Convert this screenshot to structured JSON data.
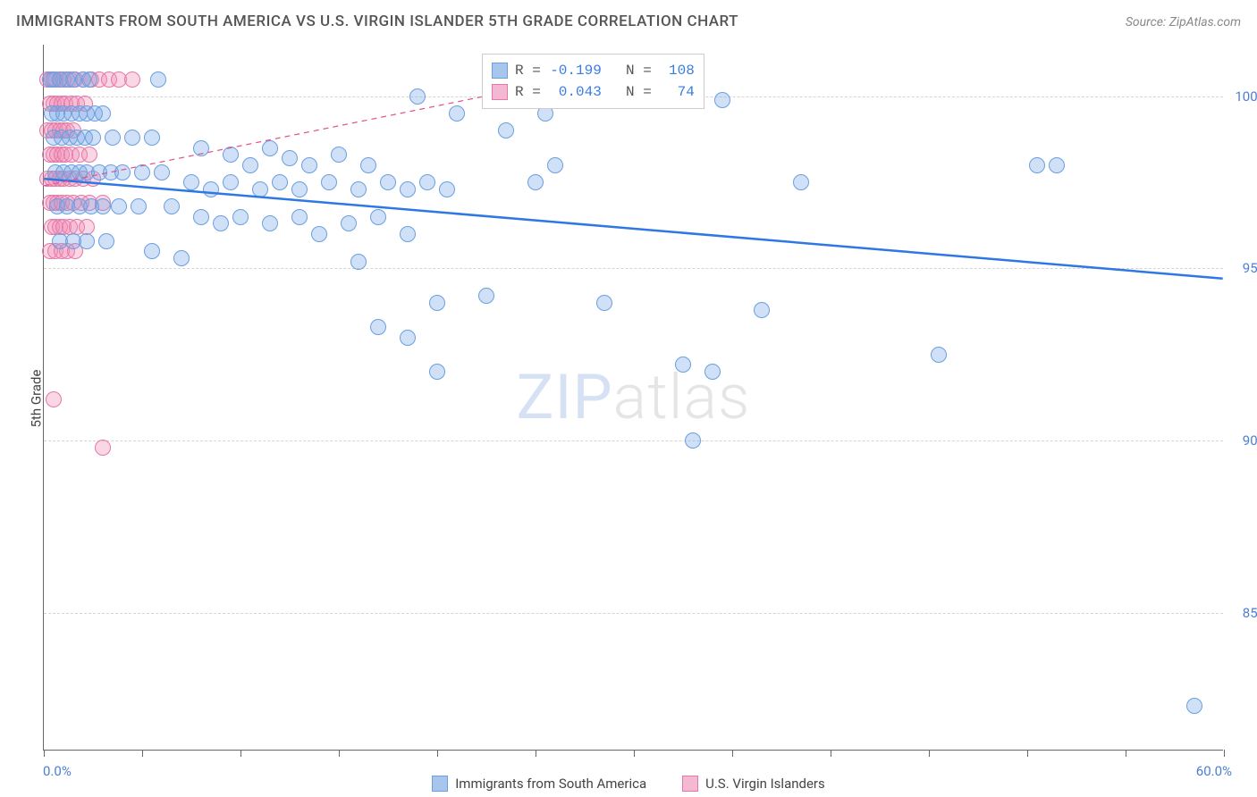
{
  "title": "IMMIGRANTS FROM SOUTH AMERICA VS U.S. VIRGIN ISLANDER 5TH GRADE CORRELATION CHART",
  "source": "Source: ZipAtlas.com",
  "ylabel": "5th Grade",
  "watermark_zip": "ZIP",
  "watermark_atlas": "atlas",
  "chart": {
    "type": "scatter",
    "xlim": [
      0,
      60
    ],
    "ylim": [
      81,
      101.5
    ],
    "xtick_min_label": "0.0%",
    "xtick_max_label": "60.0%",
    "xtick_positions": [
      0,
      5,
      10,
      15,
      20,
      25,
      30,
      35,
      40,
      45,
      50,
      55,
      60
    ],
    "ytick_positions": [
      85,
      90,
      95,
      100
    ],
    "ytick_labels": [
      "85.0%",
      "90.0%",
      "95.0%",
      "100.0%"
    ],
    "background_color": "#ffffff",
    "grid_color": "#d5d5d5",
    "axis_color": "#666666",
    "tick_label_color": "#4a7fd6",
    "marker_radius": 9,
    "series": [
      {
        "name": "Immigrants from South America",
        "color_fill": "rgba(120,165,230,0.35)",
        "color_stroke": "#6a9fe0",
        "swatch_fill": "#a8c5ec",
        "swatch_border": "#6a9fe0",
        "R": "-0.199",
        "N": "108",
        "trend": {
          "x1": 0,
          "y1": 97.6,
          "x2": 60,
          "y2": 94.7,
          "color": "#2e78e4",
          "width": 2.5,
          "dash": "none"
        },
        "points": [
          [
            0.3,
            100.5
          ],
          [
            0.5,
            100.5
          ],
          [
            0.8,
            100.5
          ],
          [
            1.2,
            100.5
          ],
          [
            1.5,
            100.5
          ],
          [
            2.0,
            100.5
          ],
          [
            2.3,
            100.5
          ],
          [
            5.8,
            100.5
          ],
          [
            0.4,
            99.5
          ],
          [
            0.7,
            99.5
          ],
          [
            1.0,
            99.5
          ],
          [
            1.4,
            99.5
          ],
          [
            1.8,
            99.5
          ],
          [
            2.2,
            99.5
          ],
          [
            2.6,
            99.5
          ],
          [
            3.0,
            99.5
          ],
          [
            19.0,
            100.0
          ],
          [
            21.0,
            99.5
          ],
          [
            23.5,
            99.0
          ],
          [
            25.5,
            99.5
          ],
          [
            27.0,
            100.5
          ],
          [
            34.5,
            99.9
          ],
          [
            0.5,
            98.8
          ],
          [
            0.9,
            98.8
          ],
          [
            1.3,
            98.8
          ],
          [
            1.7,
            98.8
          ],
          [
            2.1,
            98.8
          ],
          [
            2.5,
            98.8
          ],
          [
            3.5,
            98.8
          ],
          [
            4.5,
            98.8
          ],
          [
            5.5,
            98.8
          ],
          [
            8.0,
            98.5
          ],
          [
            9.5,
            98.3
          ],
          [
            10.5,
            98.0
          ],
          [
            11.5,
            98.5
          ],
          [
            12.5,
            98.2
          ],
          [
            13.5,
            98.0
          ],
          [
            15.0,
            98.3
          ],
          [
            16.5,
            98.0
          ],
          [
            50.5,
            98.0
          ],
          [
            51.5,
            98.0
          ],
          [
            0.6,
            97.8
          ],
          [
            1.0,
            97.8
          ],
          [
            1.4,
            97.8
          ],
          [
            1.8,
            97.8
          ],
          [
            2.2,
            97.8
          ],
          [
            2.8,
            97.8
          ],
          [
            3.4,
            97.8
          ],
          [
            4.0,
            97.8
          ],
          [
            5.0,
            97.8
          ],
          [
            6.0,
            97.8
          ],
          [
            7.5,
            97.5
          ],
          [
            8.5,
            97.3
          ],
          [
            9.5,
            97.5
          ],
          [
            11.0,
            97.3
          ],
          [
            12.0,
            97.5
          ],
          [
            13.0,
            97.3
          ],
          [
            14.5,
            97.5
          ],
          [
            16.0,
            97.3
          ],
          [
            17.5,
            97.5
          ],
          [
            18.5,
            97.3
          ],
          [
            19.5,
            97.5
          ],
          [
            20.5,
            97.3
          ],
          [
            25.0,
            97.5
          ],
          [
            26.0,
            98.0
          ],
          [
            38.5,
            97.5
          ],
          [
            0.7,
            96.8
          ],
          [
            1.2,
            96.8
          ],
          [
            1.8,
            96.8
          ],
          [
            2.4,
            96.8
          ],
          [
            3.0,
            96.8
          ],
          [
            3.8,
            96.8
          ],
          [
            4.8,
            96.8
          ],
          [
            6.5,
            96.8
          ],
          [
            8.0,
            96.5
          ],
          [
            9.0,
            96.3
          ],
          [
            10.0,
            96.5
          ],
          [
            11.5,
            96.3
          ],
          [
            13.0,
            96.5
          ],
          [
            14.0,
            96.0
          ],
          [
            15.5,
            96.3
          ],
          [
            17.0,
            96.5
          ],
          [
            18.5,
            96.0
          ],
          [
            0.8,
            95.8
          ],
          [
            1.5,
            95.8
          ],
          [
            2.2,
            95.8
          ],
          [
            3.2,
            95.8
          ],
          [
            5.5,
            95.5
          ],
          [
            7.0,
            95.3
          ],
          [
            16.0,
            95.2
          ],
          [
            20.0,
            94.0
          ],
          [
            22.5,
            94.2
          ],
          [
            28.5,
            94.0
          ],
          [
            17.0,
            93.3
          ],
          [
            18.5,
            93.0
          ],
          [
            20.0,
            92.0
          ],
          [
            32.5,
            92.2
          ],
          [
            34.0,
            92.0
          ],
          [
            36.5,
            93.8
          ],
          [
            45.5,
            92.5
          ],
          [
            33.0,
            90.0
          ],
          [
            58.5,
            82.3
          ]
        ]
      },
      {
        "name": "U.S. Virgin Islanders",
        "color_fill": "rgba(240,140,180,0.35)",
        "color_stroke": "#e478a8",
        "swatch_fill": "#f5b8d2",
        "swatch_border": "#e478a8",
        "R": "0.043",
        "N": "74",
        "trend": {
          "x1": 0,
          "y1": 97.4,
          "x2": 25,
          "y2": 100.3,
          "color": "#e05090",
          "width": 1.2,
          "dash": "6,5"
        },
        "points": [
          [
            0.2,
            100.5
          ],
          [
            0.4,
            100.5
          ],
          [
            0.6,
            100.5
          ],
          [
            0.8,
            100.5
          ],
          [
            1.0,
            100.5
          ],
          [
            1.3,
            100.5
          ],
          [
            1.6,
            100.5
          ],
          [
            2.0,
            100.5
          ],
          [
            2.4,
            100.5
          ],
          [
            2.8,
            100.5
          ],
          [
            3.3,
            100.5
          ],
          [
            3.8,
            100.5
          ],
          [
            4.5,
            100.5
          ],
          [
            0.3,
            99.8
          ],
          [
            0.5,
            99.8
          ],
          [
            0.7,
            99.8
          ],
          [
            0.9,
            99.8
          ],
          [
            1.1,
            99.8
          ],
          [
            1.4,
            99.8
          ],
          [
            1.7,
            99.8
          ],
          [
            2.1,
            99.8
          ],
          [
            0.2,
            99.0
          ],
          [
            0.4,
            99.0
          ],
          [
            0.6,
            99.0
          ],
          [
            0.8,
            99.0
          ],
          [
            1.0,
            99.0
          ],
          [
            1.2,
            99.0
          ],
          [
            1.5,
            99.0
          ],
          [
            0.3,
            98.3
          ],
          [
            0.5,
            98.3
          ],
          [
            0.7,
            98.3
          ],
          [
            0.9,
            98.3
          ],
          [
            1.1,
            98.3
          ],
          [
            1.4,
            98.3
          ],
          [
            1.8,
            98.3
          ],
          [
            2.3,
            98.3
          ],
          [
            0.2,
            97.6
          ],
          [
            0.4,
            97.6
          ],
          [
            0.6,
            97.6
          ],
          [
            0.8,
            97.6
          ],
          [
            1.0,
            97.6
          ],
          [
            1.3,
            97.6
          ],
          [
            1.6,
            97.6
          ],
          [
            2.0,
            97.6
          ],
          [
            2.5,
            97.6
          ],
          [
            0.3,
            96.9
          ],
          [
            0.5,
            96.9
          ],
          [
            0.7,
            96.9
          ],
          [
            0.9,
            96.9
          ],
          [
            1.2,
            96.9
          ],
          [
            1.5,
            96.9
          ],
          [
            1.9,
            96.9
          ],
          [
            2.3,
            96.9
          ],
          [
            3.0,
            96.9
          ],
          [
            0.4,
            96.2
          ],
          [
            0.6,
            96.2
          ],
          [
            0.8,
            96.2
          ],
          [
            1.0,
            96.2
          ],
          [
            1.3,
            96.2
          ],
          [
            1.7,
            96.2
          ],
          [
            2.2,
            96.2
          ],
          [
            0.3,
            95.5
          ],
          [
            0.6,
            95.5
          ],
          [
            0.9,
            95.5
          ],
          [
            1.2,
            95.5
          ],
          [
            1.6,
            95.5
          ],
          [
            0.5,
            91.2
          ],
          [
            3.0,
            89.8
          ]
        ]
      }
    ]
  },
  "legend_bottom": [
    {
      "label": "Immigrants from South America",
      "fill": "#a8c5ec",
      "border": "#6a9fe0"
    },
    {
      "label": "U.S. Virgin Islanders",
      "fill": "#f5b8d2",
      "border": "#e478a8"
    }
  ]
}
